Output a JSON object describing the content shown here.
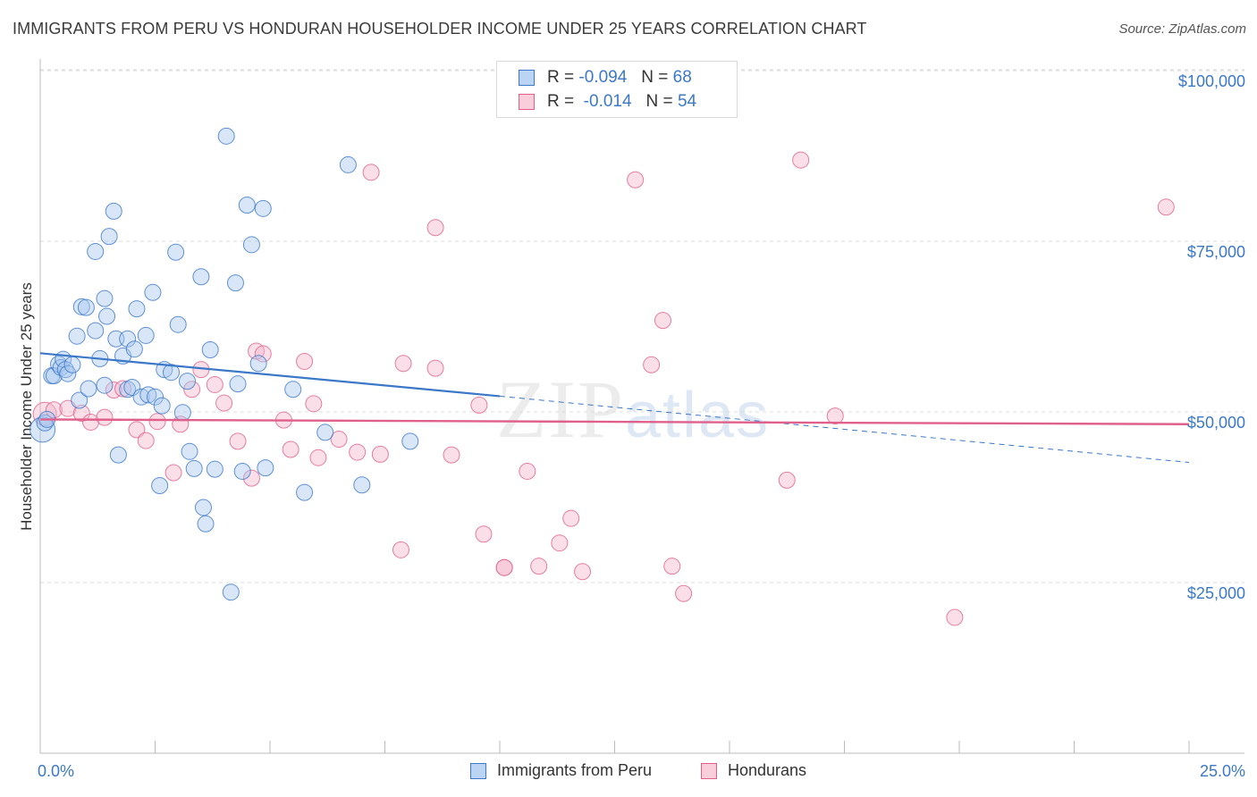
{
  "title": "IMMIGRANTS FROM PERU VS HONDURAN HOUSEHOLDER INCOME UNDER 25 YEARS CORRELATION CHART",
  "source": "Source: ZipAtlas.com",
  "watermark": {
    "zip": "ZIP",
    "atlas": "atlas"
  },
  "colors": {
    "blue": "#3b78c8",
    "pink": "#e0608c",
    "blue_fill": "#a9c8f0",
    "pink_fill": "#f5b7cb",
    "grid": "#dcdcdc"
  },
  "legend": {
    "rows": [
      {
        "r_label": "R =",
        "r_value": "-0.094",
        "n_label": "N =",
        "n_value": "68",
        "series": "blue"
      },
      {
        "r_label": "R =",
        "r_value": "-0.014",
        "n_label": "N =",
        "n_value": "54",
        "series": "pink"
      }
    ]
  },
  "bottom_legend": {
    "blue": "Immigrants from Peru",
    "pink": "Hondurans"
  },
  "chart_data": {
    "type": "scatter",
    "title": "IMMIGRANTS FROM PERU VS HONDURAN HOUSEHOLDER INCOME UNDER 25 YEARS CORRELATION CHART",
    "xlabel": "",
    "ylabel": "Householder Income Under 25 years",
    "xlim": [
      0,
      25
    ],
    "ylim": [
      0,
      105000
    ],
    "x_tick_labels": [
      "0.0%",
      "25.0%"
    ],
    "y_ticks": [
      25000,
      50000,
      75000,
      100000
    ],
    "y_tick_labels": [
      "$25,000",
      "$50,000",
      "$75,000",
      "$100,000"
    ],
    "grid": true,
    "series": [
      {
        "name": "Immigrants from Peru",
        "color": "blue",
        "r": -0.094,
        "n": 68,
        "trend": {
          "x0": 0,
          "y0": 58600,
          "x_solid_end": 10,
          "y_solid_end": 52300,
          "x1": 25,
          "y1": 42600
        },
        "points": [
          [
            0.05,
            47400
          ],
          [
            0.1,
            48400
          ],
          [
            0.15,
            48900
          ],
          [
            0.25,
            55300
          ],
          [
            0.3,
            55300
          ],
          [
            0.4,
            57000
          ],
          [
            0.45,
            56500
          ],
          [
            0.5,
            57700
          ],
          [
            0.55,
            56200
          ],
          [
            0.6,
            55600
          ],
          [
            0.7,
            56900
          ],
          [
            0.8,
            61100
          ],
          [
            0.85,
            51700
          ],
          [
            0.9,
            65400
          ],
          [
            1.0,
            65300
          ],
          [
            1.05,
            53400
          ],
          [
            1.2,
            61900
          ],
          [
            1.2,
            73500
          ],
          [
            1.3,
            57800
          ],
          [
            1.4,
            66600
          ],
          [
            1.4,
            53900
          ],
          [
            1.45,
            64000
          ],
          [
            1.5,
            75700
          ],
          [
            1.6,
            79400
          ],
          [
            1.65,
            60700
          ],
          [
            1.7,
            43700
          ],
          [
            1.8,
            58200
          ],
          [
            1.9,
            60700
          ],
          [
            1.9,
            53300
          ],
          [
            2.0,
            53600
          ],
          [
            2.05,
            59200
          ],
          [
            2.1,
            65100
          ],
          [
            2.2,
            52200
          ],
          [
            2.3,
            61200
          ],
          [
            2.35,
            52500
          ],
          [
            2.45,
            67500
          ],
          [
            2.5,
            52200
          ],
          [
            2.6,
            39200
          ],
          [
            2.65,
            50900
          ],
          [
            2.7,
            56200
          ],
          [
            2.85,
            55800
          ],
          [
            2.95,
            73400
          ],
          [
            3.0,
            62800
          ],
          [
            3.1,
            49900
          ],
          [
            3.2,
            54500
          ],
          [
            3.25,
            44200
          ],
          [
            3.35,
            41700
          ],
          [
            3.5,
            69800
          ],
          [
            3.55,
            36000
          ],
          [
            3.6,
            33600
          ],
          [
            3.7,
            59100
          ],
          [
            3.8,
            41600
          ],
          [
            4.05,
            90400
          ],
          [
            4.15,
            23600
          ],
          [
            4.25,
            68900
          ],
          [
            4.3,
            54100
          ],
          [
            4.4,
            41300
          ],
          [
            4.5,
            80300
          ],
          [
            4.6,
            74500
          ],
          [
            4.75,
            57100
          ],
          [
            4.85,
            79800
          ],
          [
            4.9,
            41800
          ],
          [
            5.5,
            53300
          ],
          [
            5.75,
            38200
          ],
          [
            6.2,
            47000
          ],
          [
            6.7,
            86200
          ],
          [
            7.0,
            39300
          ],
          [
            8.05,
            45700
          ]
        ]
      },
      {
        "name": "Hondurans",
        "color": "pink",
        "r": -0.014,
        "n": 54,
        "trend": {
          "x0": 0,
          "y0": 48900,
          "x1": 25,
          "y1": 48200
        },
        "points": [
          [
            0.1,
            49700
          ],
          [
            0.3,
            50300
          ],
          [
            0.6,
            50500
          ],
          [
            0.9,
            49800
          ],
          [
            1.1,
            48500
          ],
          [
            1.4,
            49200
          ],
          [
            1.6,
            53200
          ],
          [
            1.8,
            53400
          ],
          [
            2.1,
            47400
          ],
          [
            2.3,
            45800
          ],
          [
            2.55,
            48600
          ],
          [
            2.9,
            41100
          ],
          [
            3.05,
            48200
          ],
          [
            3.3,
            53300
          ],
          [
            3.5,
            56200
          ],
          [
            3.8,
            54000
          ],
          [
            4.0,
            51300
          ],
          [
            4.3,
            45700
          ],
          [
            4.6,
            40300
          ],
          [
            4.7,
            58900
          ],
          [
            4.85,
            58500
          ],
          [
            5.3,
            48800
          ],
          [
            5.45,
            44500
          ],
          [
            5.75,
            57400
          ],
          [
            5.95,
            51200
          ],
          [
            6.05,
            43300
          ],
          [
            6.5,
            46000
          ],
          [
            6.9,
            44100
          ],
          [
            7.2,
            85100
          ],
          [
            7.4,
            43800
          ],
          [
            7.85,
            29800
          ],
          [
            7.9,
            57100
          ],
          [
            8.6,
            77000
          ],
          [
            8.6,
            56400
          ],
          [
            8.95,
            43700
          ],
          [
            9.55,
            51000
          ],
          [
            9.65,
            32100
          ],
          [
            10.1,
            27200
          ],
          [
            10.6,
            41300
          ],
          [
            10.85,
            27400
          ],
          [
            11.3,
            30800
          ],
          [
            11.55,
            34400
          ],
          [
            11.8,
            26600
          ],
          [
            12.95,
            84000
          ],
          [
            13.3,
            56900
          ],
          [
            13.55,
            63400
          ],
          [
            13.75,
            27400
          ],
          [
            14.0,
            23400
          ],
          [
            16.25,
            40000
          ],
          [
            16.55,
            86900
          ],
          [
            17.3,
            49400
          ],
          [
            19.9,
            19900
          ],
          [
            24.5,
            80000
          ],
          [
            10.1,
            27200
          ]
        ]
      }
    ]
  }
}
